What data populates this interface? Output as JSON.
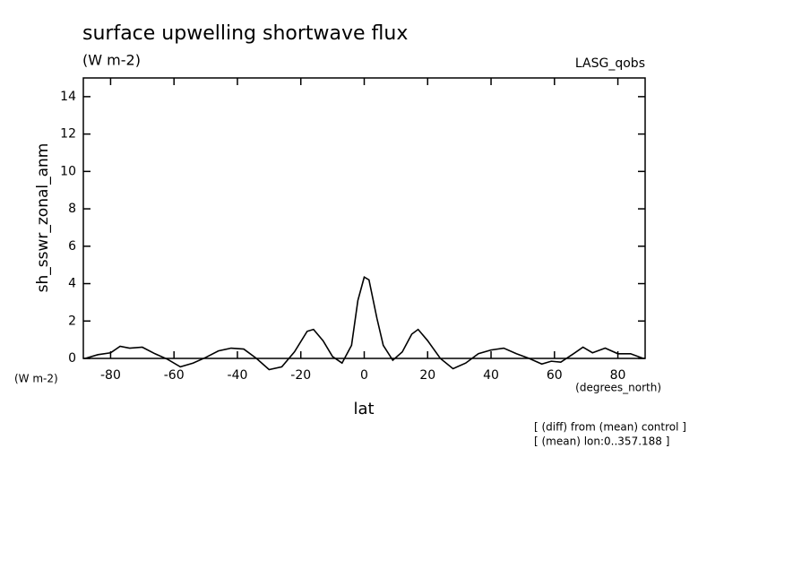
{
  "chart_data": {
    "type": "line",
    "title": "surface upwelling shortwave flux",
    "subtitle": "(W m-2)",
    "dataset": "LASG_qobs",
    "y_label": "sh_sswr_zonal_anm",
    "y_units": "(W m-2)",
    "x_label": "lat",
    "x_units": "(degrees_north)",
    "notes": [
      "[ (diff) from (mean) control ]",
      "[ (mean) lon:0..357.188 ]"
    ],
    "x": [
      -88,
      -84,
      -80,
      -77,
      -74,
      -70,
      -66,
      -62,
      -58,
      -54,
      -50,
      -46,
      -42,
      -38,
      -34,
      -30,
      -26,
      -22,
      -18,
      -16,
      -13,
      -10,
      -7,
      -4,
      -2,
      0,
      1.5,
      4,
      6,
      9,
      12,
      15,
      17,
      20,
      24,
      28,
      32,
      36,
      40,
      44,
      48,
      52,
      56,
      59,
      62,
      66,
      69,
      72,
      76,
      80,
      84,
      88
    ],
    "series": [
      {
        "name": "sh_sswr_zonal_anm",
        "color": "#000000",
        "values": [
          0,
          0.2,
          0.3,
          0.65,
          0.55,
          0.6,
          0.25,
          -0.05,
          -0.45,
          -0.25,
          0.05,
          0.4,
          0.55,
          0.5,
          0,
          -0.6,
          -0.45,
          0.35,
          1.45,
          1.55,
          0.95,
          0.1,
          -0.25,
          0.7,
          3.1,
          4.35,
          4.2,
          2.15,
          0.7,
          -0.1,
          0.35,
          1.3,
          1.55,
          0.95,
          0,
          -0.55,
          -0.25,
          0.25,
          0.45,
          0.55,
          0.25,
          0,
          -0.3,
          -0.15,
          -0.2,
          0.25,
          0.6,
          0.3,
          0.55,
          0.25,
          0.25,
          0
        ]
      }
    ],
    "xlim": [
      -88.6,
      88.6
    ],
    "ylim": [
      0,
      15
    ],
    "xticks": [
      -80,
      -60,
      -40,
      -20,
      0,
      20,
      40,
      60,
      80
    ],
    "yticks": [
      0,
      2,
      4,
      6,
      8,
      10,
      12,
      14
    ],
    "grid": false
  }
}
